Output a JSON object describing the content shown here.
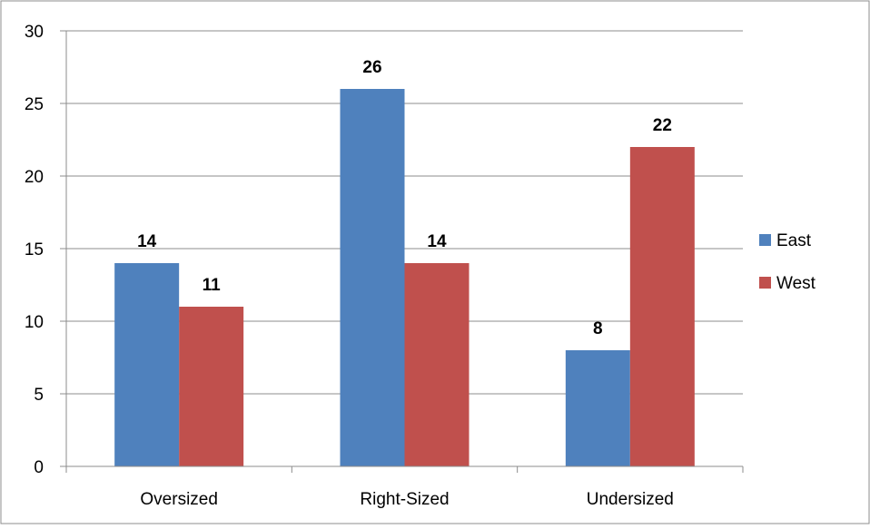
{
  "chart_data": {
    "type": "bar",
    "title": "",
    "xlabel": "",
    "ylabel": "",
    "categories": [
      "Oversized",
      "Right-Sized",
      "Undersized"
    ],
    "series": [
      {
        "name": "East",
        "values": [
          14,
          26,
          8
        ],
        "color": "#4F81BD"
      },
      {
        "name": "West",
        "values": [
          11,
          14,
          22
        ],
        "color": "#C0504D"
      }
    ],
    "ylim": [
      0,
      30
    ],
    "yticks": [
      0,
      5,
      10,
      15,
      20,
      25,
      30
    ],
    "grid": true,
    "data_labels": true,
    "legend_position": "right"
  }
}
